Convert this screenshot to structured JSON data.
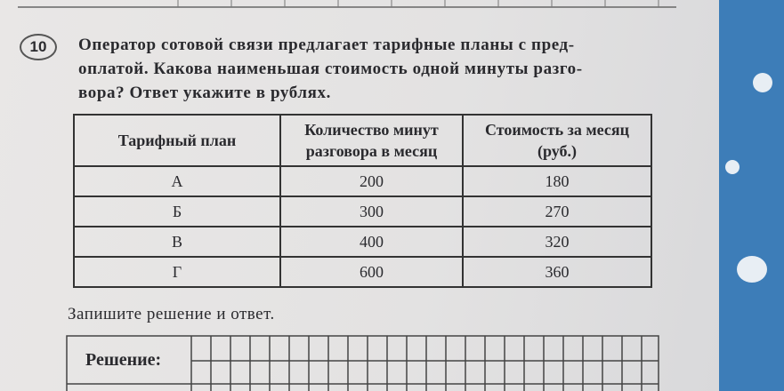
{
  "problem": {
    "number": "10",
    "question_lines": [
      "Оператор сотовой связи предлагает тарифные планы с пред-",
      "оплатой. Какова наименьшая стоимость одной минуты разго-",
      "вора? Ответ укажите в рублях."
    ]
  },
  "table": {
    "header": [
      [
        "Тарифный план"
      ],
      [
        "Количество минут",
        "разговора в месяц"
      ],
      [
        "Стоимость за месяц",
        "(руб.)"
      ]
    ],
    "rows": [
      [
        "А",
        "200",
        "180"
      ],
      [
        "Б",
        "300",
        "270"
      ],
      [
        "В",
        "400",
        "320"
      ],
      [
        "Г",
        "600",
        "360"
      ]
    ]
  },
  "answer": {
    "instruction": "Запишите решение и ответ.",
    "solution_label": "Решение:"
  }
}
